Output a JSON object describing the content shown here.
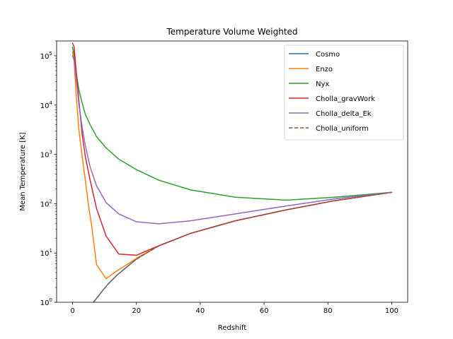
{
  "chart_data": {
    "type": "line",
    "title": "Temperature Volume Weighted",
    "xlabel": "Redshift",
    "ylabel": "Mean Temperature  [K]",
    "xlim": [
      -5,
      105
    ],
    "ylim": [
      1,
      200000
    ],
    "yscale": "log",
    "xticks": [
      "0",
      "20",
      "40",
      "60",
      "80",
      "100"
    ],
    "yticks": [
      {
        "base": "10",
        "exp": "0"
      },
      {
        "base": "10",
        "exp": "1"
      },
      {
        "base": "10",
        "exp": "2"
      },
      {
        "base": "10",
        "exp": "3"
      },
      {
        "base": "10",
        "exp": "4"
      },
      {
        "base": "10",
        "exp": "5"
      }
    ],
    "grid": false,
    "legend_position": "top-right",
    "series": [
      {
        "name": "Cosmo",
        "color": "#1f77b4",
        "dash": "solid",
        "x": [
          6.5,
          7.5,
          9,
          11,
          14,
          17,
          20,
          27,
          37,
          51,
          67,
          82,
          100
        ],
        "y": [
          1.0,
          1.2,
          1.6,
          2.3,
          3.6,
          5.2,
          7.5,
          14,
          25,
          45,
          75,
          115,
          170
        ]
      },
      {
        "name": "Enzo",
        "color": "#ff7f0e",
        "dash": "solid",
        "x": [
          0,
          0.5,
          1,
          2,
          3,
          4,
          5,
          6,
          7.5,
          10.5,
          14,
          17,
          20,
          27,
          37,
          51,
          67,
          82,
          100
        ],
        "y": [
          120000,
          80000,
          20000,
          3000,
          900,
          300,
          90,
          35,
          5.8,
          3.0,
          4.4,
          5.8,
          7.8,
          14,
          25,
          45,
          75,
          115,
          170
        ]
      },
      {
        "name": "Nyx",
        "color": "#2ca02c",
        "dash": "solid",
        "x": [
          0,
          0.5,
          1,
          2,
          3,
          4,
          5.5,
          7.5,
          10.5,
          14.5,
          20,
          27,
          37,
          51,
          67,
          82,
          100
        ],
        "y": [
          150000,
          100000,
          50000,
          20000,
          11000,
          6500,
          4000,
          2300,
          1350,
          800,
          490,
          300,
          190,
          135,
          118,
          135,
          170
        ]
      },
      {
        "name": "Cholla_gravWork",
        "color": "#d62728",
        "dash": "solid",
        "x": [
          0,
          0.5,
          1,
          2,
          3,
          4,
          5.5,
          7.5,
          10.5,
          14.5,
          20,
          27,
          37,
          51,
          67,
          82,
          100
        ],
        "y": [
          180000,
          150000,
          60000,
          12000,
          2500,
          900,
          300,
          80,
          22,
          9.5,
          9.0,
          14,
          25,
          45,
          75,
          115,
          170
        ]
      },
      {
        "name": "Cholla_delta_Ek",
        "color": "#9467bd",
        "dash": "solid",
        "x": [
          0,
          0.5,
          1,
          2,
          3,
          4,
          5.5,
          7.5,
          10.5,
          14.5,
          20,
          27,
          37,
          51,
          67,
          82,
          100
        ],
        "y": [
          100000,
          80000,
          40000,
          10000,
          3500,
          1500,
          560,
          230,
          105,
          62,
          43,
          39,
          45,
          62,
          90,
          125,
          170
        ]
      },
      {
        "name": "Cholla_uniform",
        "color": "#8c564b",
        "dash": "dashed",
        "x": [
          6.5,
          7.5,
          9,
          11,
          14,
          17,
          20,
          27,
          37,
          51,
          67,
          82,
          100
        ],
        "y": [
          1.0,
          1.2,
          1.6,
          2.3,
          3.6,
          5.2,
          7.5,
          14,
          25,
          45,
          75,
          115,
          170
        ]
      }
    ]
  }
}
